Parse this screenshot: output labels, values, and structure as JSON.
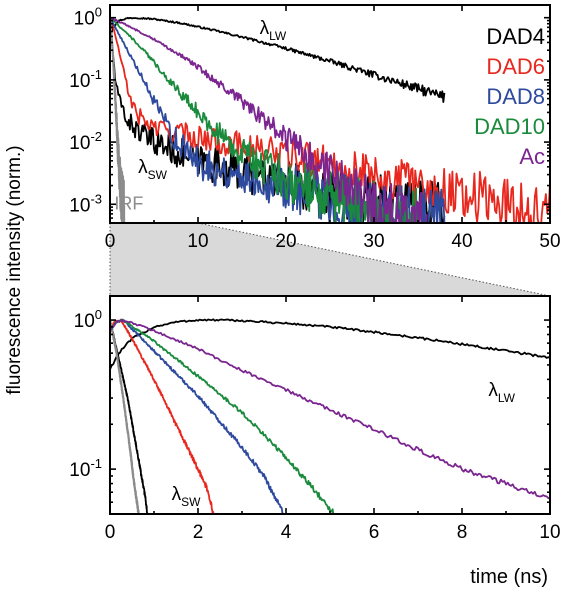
{
  "figure": {
    "shared_ylabel": "fluorescence intensity (norm.)",
    "zoom_fill_color": "#d9d9d9"
  },
  "chart_data": [
    {
      "type": "line",
      "panel": "top",
      "y_scale": "log",
      "xlim": [
        0,
        50
      ],
      "ylim": [
        0.0005,
        1.6
      ],
      "x_ticks": [
        0,
        10,
        20,
        30,
        40,
        50
      ],
      "x_tick_labels": [
        "0",
        "10",
        "20",
        "30",
        "40",
        "50"
      ],
      "y_ticks": [
        1,
        0.1,
        0.01,
        0.001
      ],
      "y_tick_labels": [
        {
          "base": "10",
          "exp": "0"
        },
        {
          "base": "10",
          "exp": "-1"
        },
        {
          "base": "10",
          "exp": "-2"
        },
        {
          "base": "10",
          "exp": "-3"
        }
      ],
      "xlabel": "",
      "grid": false,
      "legend_position": "top-right",
      "series": [
        {
          "name": "DAD4",
          "color": "#000000",
          "x_end": 38,
          "points": [
            [
              0,
              0.55
            ],
            [
              0.5,
              0.75
            ],
            [
              1,
              0.9
            ],
            [
              2,
              0.98
            ],
            [
              3,
              1.0
            ],
            [
              5,
              0.95
            ],
            [
              8,
              0.82
            ],
            [
              12,
              0.62
            ],
            [
              16,
              0.45
            ],
            [
              20,
              0.32
            ],
            [
              25,
              0.2
            ],
            [
              30,
              0.12
            ],
            [
              35,
              0.072
            ],
            [
              38,
              0.052
            ]
          ]
        },
        {
          "name": "DAD4",
          "color": "#000000",
          "x_end": 38,
          "points": [
            [
              0,
              1.0
            ],
            [
              0.3,
              0.3
            ],
            [
              0.6,
              0.1
            ],
            [
              1,
              0.05
            ],
            [
              2,
              0.022
            ],
            [
              4,
              0.012
            ],
            [
              8,
              0.0065
            ],
            [
              12,
              0.0042
            ],
            [
              16,
              0.003
            ],
            [
              20,
              0.0023
            ],
            [
              25,
              0.0016
            ],
            [
              30,
              0.0012
            ],
            [
              35,
              0.00088
            ],
            [
              38,
              0.00075
            ]
          ]
        },
        {
          "name": "DAD6",
          "color": "#e8281e",
          "x_end": 50,
          "points": [
            [
              0,
              1.0
            ],
            [
              0.5,
              0.6
            ],
            [
              1,
              0.3
            ],
            [
              1.5,
              0.15
            ],
            [
              2,
              0.07
            ],
            [
              3,
              0.028
            ],
            [
              5,
              0.017
            ],
            [
              10,
              0.012
            ],
            [
              15,
              0.0088
            ],
            [
              20,
              0.0062
            ],
            [
              25,
              0.0044
            ],
            [
              30,
              0.003
            ],
            [
              35,
              0.0021
            ],
            [
              40,
              0.0015
            ],
            [
              45,
              0.001
            ],
            [
              50,
              0.00072
            ]
          ]
        },
        {
          "name": "DAD8",
          "color": "#2e4a9e",
          "x_end": 38,
          "points": [
            [
              0,
              1.0
            ],
            [
              1,
              0.55
            ],
            [
              2,
              0.3
            ],
            [
              3,
              0.16
            ],
            [
              4,
              0.085
            ],
            [
              5,
              0.045
            ],
            [
              6,
              0.024
            ],
            [
              7,
              0.014
            ],
            [
              8,
              0.0085
            ],
            [
              10,
              0.0048
            ],
            [
              13,
              0.0034
            ],
            [
              17,
              0.0026
            ],
            [
              20,
              0.0019
            ],
            [
              25,
              0.0012
            ],
            [
              30,
              0.00085
            ],
            [
              35,
              0.0006
            ],
            [
              38,
              0.0005
            ]
          ]
        },
        {
          "name": "DAD10",
          "color": "#1a8a3c",
          "x_end": 35,
          "points": [
            [
              0,
              1.0
            ],
            [
              2,
              0.55
            ],
            [
              4,
              0.28
            ],
            [
              6,
              0.13
            ],
            [
              8,
              0.062
            ],
            [
              10,
              0.03
            ],
            [
              12,
              0.015
            ],
            [
              14,
              0.0085
            ],
            [
              16,
              0.0052
            ],
            [
              18,
              0.0036
            ],
            [
              20,
              0.0027
            ],
            [
              22,
              0.0019
            ],
            [
              25,
              0.0013
            ],
            [
              28,
              0.0009
            ],
            [
              32,
              0.0006
            ],
            [
              35,
              0.0005
            ]
          ]
        },
        {
          "name": "Ac",
          "color": "#7b2590",
          "x_end": 36,
          "points": [
            [
              0,
              1.0
            ],
            [
              2,
              0.75
            ],
            [
              5,
              0.45
            ],
            [
              8,
              0.25
            ],
            [
              10,
              0.16
            ],
            [
              12,
              0.095
            ],
            [
              14,
              0.058
            ],
            [
              16,
              0.034
            ],
            [
              18,
              0.02
            ],
            [
              20,
              0.0115
            ],
            [
              22,
              0.0068
            ],
            [
              24,
              0.004
            ],
            [
              26,
              0.0024
            ],
            [
              28,
              0.0014
            ],
            [
              30,
              0.001
            ],
            [
              33,
              0.00072
            ],
            [
              36,
              0.00055
            ]
          ]
        },
        {
          "name": "IRF",
          "color": "#8c8c8c",
          "x_end": 1.6,
          "points": [
            [
              0,
              1.0
            ],
            [
              0.3,
              0.3
            ],
            [
              0.6,
              0.05
            ],
            [
              0.9,
              0.008
            ],
            [
              1.2,
              0.0018
            ],
            [
              1.5,
              0.0009
            ],
            [
              1.6,
              0.00075
            ]
          ]
        }
      ],
      "annotations": [
        {
          "text": "λ",
          "sub": "LW",
          "x": 17,
          "y": 0.55
        },
        {
          "text": "λ",
          "sub": "SW",
          "x": 3.2,
          "y": 0.0032
        },
        {
          "text": "IRF",
          "x": 0.5,
          "y": 0.00082
        }
      ]
    },
    {
      "type": "line",
      "panel": "bottom",
      "y_scale": "log",
      "xlim": [
        0,
        10
      ],
      "ylim": [
        0.05,
        1.45
      ],
      "x_ticks": [
        0,
        2,
        4,
        6,
        8,
        10
      ],
      "x_tick_labels": [
        "0",
        "2",
        "4",
        "6",
        "8",
        "10"
      ],
      "y_ticks": [
        1,
        0.1
      ],
      "y_tick_labels": [
        {
          "base": "10",
          "exp": "0"
        },
        {
          "base": "10",
          "exp": "-1"
        }
      ],
      "xlabel": "time (ns)",
      "grid": false,
      "series": [
        {
          "name": "DAD4",
          "color": "#000000",
          "points": [
            [
              0,
              0.47
            ],
            [
              0.2,
              0.6
            ],
            [
              0.5,
              0.75
            ],
            [
              1,
              0.9
            ],
            [
              1.5,
              0.97
            ],
            [
              2,
              1.0
            ],
            [
              2.5,
              1.0
            ],
            [
              3,
              0.99
            ],
            [
              4,
              0.95
            ],
            [
              5,
              0.9
            ],
            [
              6,
              0.83
            ],
            [
              7,
              0.76
            ],
            [
              8,
              0.69
            ],
            [
              9,
              0.62
            ],
            [
              10,
              0.56
            ]
          ]
        },
        {
          "name": "DAD4",
          "color": "#000000",
          "points": [
            [
              0,
              1.0
            ],
            [
              0.2,
              0.55
            ],
            [
              0.4,
              0.3
            ],
            [
              0.6,
              0.14
            ],
            [
              0.8,
              0.065
            ],
            [
              0.85,
              0.05
            ]
          ]
        },
        {
          "name": "IRF",
          "color": "#8c8c8c",
          "points": [
            [
              0,
              1.0
            ],
            [
              0.15,
              0.6
            ],
            [
              0.3,
              0.3
            ],
            [
              0.45,
              0.14
            ],
            [
              0.55,
              0.08
            ],
            [
              0.65,
              0.05
            ]
          ]
        },
        {
          "name": "DAD6",
          "color": "#e8281e",
          "points": [
            [
              0,
              0.85
            ],
            [
              0.1,
              0.97
            ],
            [
              0.25,
              1.0
            ],
            [
              0.5,
              0.75
            ],
            [
              1,
              0.4
            ],
            [
              1.5,
              0.2
            ],
            [
              2,
              0.1
            ],
            [
              2.2,
              0.075
            ],
            [
              2.35,
              0.05
            ]
          ]
        },
        {
          "name": "DAD8",
          "color": "#2e4a9e",
          "points": [
            [
              0,
              0.85
            ],
            [
              0.15,
              0.97
            ],
            [
              0.3,
              1.0
            ],
            [
              1,
              0.62
            ],
            [
              2,
              0.31
            ],
            [
              3,
              0.14
            ],
            [
              3.5,
              0.09
            ],
            [
              3.95,
              0.05
            ]
          ]
        },
        {
          "name": "DAD10",
          "color": "#1a8a3c",
          "points": [
            [
              0,
              0.85
            ],
            [
              0.15,
              0.97
            ],
            [
              0.3,
              1.0
            ],
            [
              1,
              0.72
            ],
            [
              2,
              0.42
            ],
            [
              3,
              0.24
            ],
            [
              4,
              0.12
            ],
            [
              4.6,
              0.075
            ],
            [
              5.1,
              0.05
            ]
          ]
        },
        {
          "name": "Ac",
          "color": "#7b2590",
          "points": [
            [
              0,
              0.85
            ],
            [
              0.15,
              0.97
            ],
            [
              0.3,
              1.0
            ],
            [
              1,
              0.85
            ],
            [
              2,
              0.64
            ],
            [
              3,
              0.46
            ],
            [
              4,
              0.34
            ],
            [
              5,
              0.25
            ],
            [
              6,
              0.185
            ],
            [
              7,
              0.135
            ],
            [
              8,
              0.1
            ],
            [
              9,
              0.08
            ],
            [
              10,
              0.062
            ]
          ]
        }
      ],
      "annotations": [
        {
          "text": "λ",
          "sub": "LW",
          "x": 8.6,
          "y": 0.31
        },
        {
          "text": "λ",
          "sub": "SW",
          "x": 1.4,
          "y": 0.062
        }
      ]
    }
  ]
}
